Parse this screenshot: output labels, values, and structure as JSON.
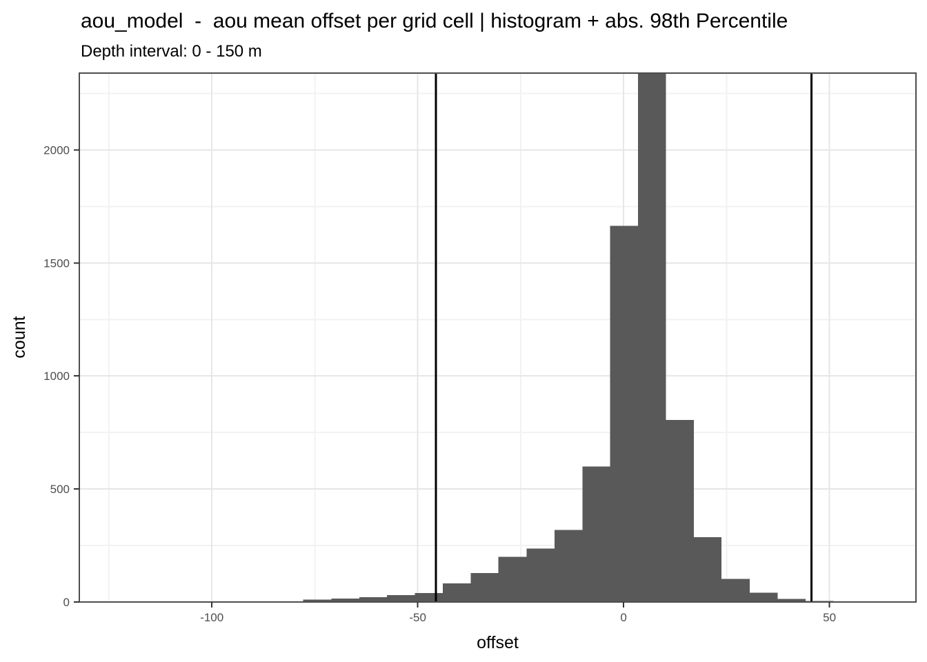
{
  "chart_data": {
    "type": "histogram",
    "title": "aou_model  -  aou mean offset per grid cell | histogram + abs. 98th Percentile",
    "subtitle": "Depth interval: 0 - 150 m",
    "xlabel": "offset",
    "ylabel": "count",
    "xlim": [
      -132.2,
      71.0
    ],
    "ylim": [
      0,
      2340
    ],
    "x_major_ticks": [
      -100,
      -50,
      0,
      50
    ],
    "x_minor_gridlines": [
      -125,
      -75,
      -25,
      25
    ],
    "y_major_ticks": [
      0,
      500,
      1000,
      1500,
      2000
    ],
    "y_minor_gridlines": [
      250,
      750,
      1250,
      1750,
      2250
    ],
    "grid": true,
    "legend_position": "none",
    "bar_fill": "#595959",
    "panel_background": "#ffffff",
    "panel_border_color": "#4d4d4d",
    "grid_major_color": "#e6e6e6",
    "grid_minor_color": "#f2f2f2",
    "tick_color": "#333333",
    "tick_label_color": "#4d4d4d",
    "bin_edges": [
      -77.8,
      -71.0,
      -64.2,
      -57.5,
      -50.7,
      -43.9,
      -37.1,
      -30.4,
      -23.6,
      -16.8,
      -10.0,
      -3.3,
      3.5,
      10.3,
      17.1,
      23.8,
      30.6,
      37.4,
      44.2,
      51.0
    ],
    "counts": [
      10,
      16,
      22,
      30,
      40,
      82,
      128,
      200,
      236,
      319,
      599,
      1664,
      2340,
      805,
      287,
      102,
      41,
      13,
      4
    ],
    "peak_bin_clipped_at_ylim": true,
    "percentile_lines": {
      "label": "abs. 98th Percentile",
      "x_values": [
        -45.6,
        45.6
      ],
      "color": "#000000"
    }
  }
}
